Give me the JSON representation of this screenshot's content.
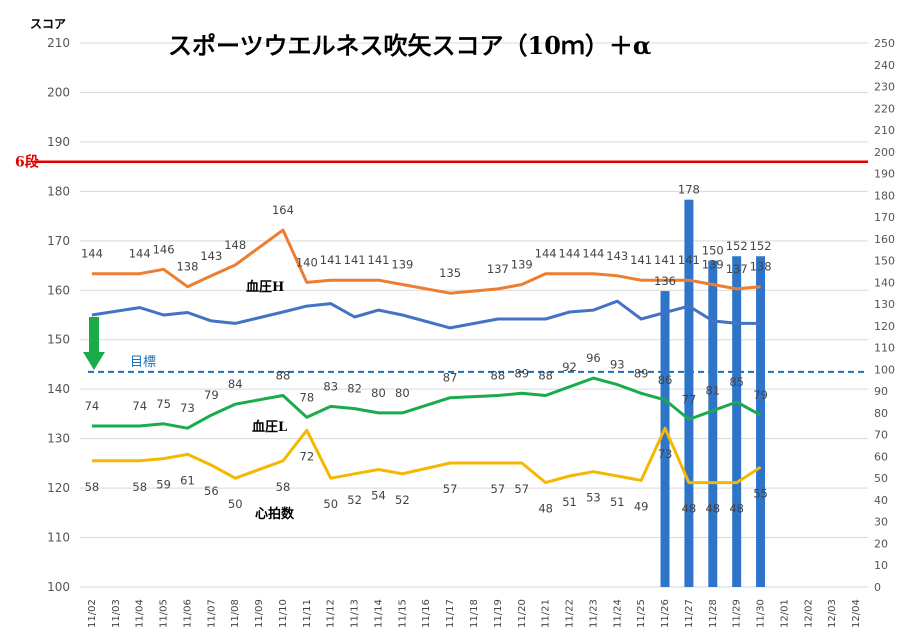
{
  "chart_data": {
    "type": "line",
    "title": "スポーツウエルネス吹矢スコア（10ｍ）＋α",
    "ylabel": "スコア",
    "ylim": [
      100,
      210
    ],
    "y2lim": [
      0,
      250
    ],
    "x": [
      "11/02",
      "11/03",
      "11/04",
      "11/05",
      "11/06",
      "11/07",
      "11/08",
      "11/09",
      "11/10",
      "11/11",
      "11/12",
      "11/13",
      "11/14",
      "11/15",
      "11/16",
      "11/17",
      "11/18",
      "11/19",
      "11/20",
      "11/21",
      "11/22",
      "11/23",
      "11/24",
      "11/25",
      "11/26",
      "11/27",
      "11/28",
      "11/29",
      "11/30",
      "12/01",
      "12/02",
      "12/03",
      "12/04"
    ],
    "series": [
      {
        "name": "血圧H",
        "axis": "right",
        "color": "#ed7d31",
        "values": [
          144,
          null,
          144,
          146,
          138,
          143,
          148,
          null,
          164,
          140,
          141,
          141,
          141,
          139,
          null,
          135,
          null,
          137,
          139,
          144,
          144,
          144,
          143,
          141,
          141,
          141,
          139,
          137,
          138,
          null,
          null,
          null,
          null
        ],
        "labels": [
          "144",
          "",
          "144",
          "146",
          "138",
          "143",
          "148",
          "",
          "164",
          "140",
          "141",
          "141",
          "141",
          "139",
          "",
          "135",
          "",
          "137",
          "139",
          "144",
          "144",
          "144",
          "143",
          "141",
          "141",
          "141",
          "139",
          "137",
          "138",
          "",
          "",
          "",
          ""
        ]
      },
      {
        "name": "score",
        "axis": "left",
        "color": "#4472c4",
        "values": [
          155,
          null,
          156.5,
          155,
          155.5,
          153.8,
          153.3,
          null,
          155.6,
          156.8,
          157.3,
          154.6,
          156,
          155,
          null,
          152.4,
          null,
          154.2,
          154.2,
          154.2,
          155.6,
          156,
          157.8,
          154.2,
          null,
          156.8,
          153.8,
          153.3,
          153.3,
          null,
          null,
          null,
          null
        ]
      },
      {
        "name": "血圧L",
        "axis": "right",
        "color": "#1aab4b",
        "values": [
          74,
          null,
          74,
          75,
          73,
          79,
          84,
          null,
          88,
          78,
          83,
          82,
          80,
          80,
          null,
          87,
          null,
          88,
          89,
          88,
          92,
          96,
          93,
          89,
          86,
          77,
          81,
          85,
          79,
          null,
          null,
          null,
          null
        ],
        "labels": [
          "74",
          "",
          "74",
          "75",
          "73",
          "79",
          "84",
          "",
          "88",
          "78",
          "83",
          "82",
          "80",
          "80",
          "",
          "87",
          "",
          "88",
          "89",
          "88",
          "92",
          "96",
          "93",
          "89",
          "86",
          "77",
          "81",
          "85",
          "79",
          "",
          "",
          "",
          ""
        ]
      },
      {
        "name": "心拍数",
        "axis": "right",
        "color": "#f5b800",
        "values": [
          58,
          null,
          58,
          59,
          61,
          56,
          50,
          null,
          58,
          72,
          50,
          52,
          54,
          52,
          null,
          57,
          null,
          57,
          57,
          48,
          51,
          53,
          51,
          49,
          73,
          48,
          48,
          48,
          55,
          null,
          null,
          null,
          null
        ],
        "labels": [
          "58",
          "",
          "58",
          "59",
          "61",
          "56",
          "50",
          "",
          "58",
          "72",
          "50",
          "52",
          "54",
          "52",
          "",
          "57",
          "",
          "57",
          "57",
          "48",
          "51",
          "53",
          "51",
          "49",
          "73",
          "48",
          "48",
          "48",
          "55",
          "",
          "",
          "",
          ""
        ]
      },
      {
        "name": "bars",
        "axis": "right",
        "type": "bar",
        "color": "#2e75c9",
        "values": [
          null,
          null,
          null,
          null,
          null,
          null,
          null,
          null,
          null,
          null,
          null,
          null,
          null,
          null,
          null,
          null,
          null,
          null,
          null,
          null,
          null,
          null,
          null,
          null,
          136,
          178,
          150,
          152,
          152,
          null,
          null,
          null,
          null
        ],
        "labels": [
          "",
          "",
          "",
          "",
          "",
          "",
          "",
          "",
          "",
          "",
          "",
          "",
          "",
          "",
          "",
          "",
          "",
          "",
          "",
          "",
          "",
          "",
          "",
          "",
          "136",
          "178",
          "150",
          "152",
          "152",
          "",
          "",
          "",
          ""
        ]
      }
    ],
    "reference_lines": [
      {
        "label": "6段",
        "value": 186,
        "color": "#e00000"
      },
      {
        "label": "目標",
        "value": 143.5,
        "color": "#1f6fb3"
      }
    ],
    "grid": true
  }
}
